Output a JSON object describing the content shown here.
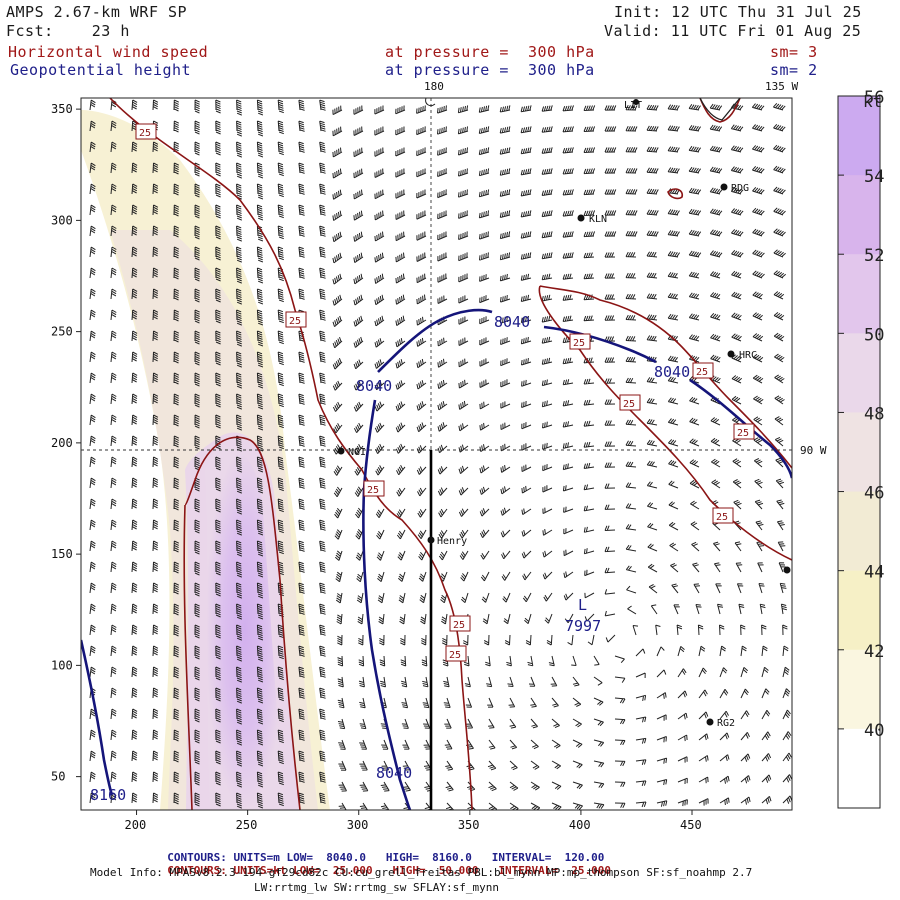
{
  "header": {
    "model": "AMPS 2.67-km WRF SP",
    "init": "Init: 12 UTC Thu 31 Jul 25",
    "forecast": "Fcst:    23 h",
    "valid": "Valid: 11 UTC Fri 01 Aug 25",
    "field1": {
      "name": "Horizontal wind speed",
      "level": "at pressure =  300 hPa",
      "smooth": "sm= 3",
      "color": "#a01818"
    },
    "field2": {
      "name": "Geopotential height",
      "level": "at pressure =  300 hPa",
      "smooth": "sm= 2",
      "color": "#20208a"
    }
  },
  "map": {
    "meridian_labels": [
      "180",
      "135 W",
      "90 W"
    ],
    "stations": [
      "LIT",
      "RDG",
      "KLN",
      "HRC",
      "NGI",
      "Henry",
      "RG2"
    ],
    "low": {
      "label": "L",
      "value": "7997"
    },
    "height_contour_labels": [
      "8040",
      "8040",
      "8040",
      "8040",
      "8160"
    ],
    "speed_contour_label": "25",
    "axes": {
      "x_ticks": [
        "200",
        "250",
        "300",
        "350",
        "400",
        "450"
      ],
      "y_ticks": [
        "50",
        "100",
        "150",
        "200",
        "250",
        "300",
        "350"
      ],
      "xlim": [
        175,
        495
      ],
      "ylim": [
        35,
        355
      ]
    }
  },
  "colorbar": {
    "unit": "kt",
    "ticks": [
      "40",
      "42",
      "44",
      "46",
      "48",
      "50",
      "52",
      "54",
      "56"
    ],
    "colors": [
      "#ffffff",
      "#faf6e0",
      "#f6f0c6",
      "#f2ebd4",
      "#efe3e3",
      "#ead8ea",
      "#e2c6ec",
      "#d8b4ec",
      "#ccaaf0"
    ]
  },
  "footer": {
    "row1": {
      "label": "CONTOURS:",
      "units": "UNITS=m",
      "low": "LOW=  8040.0",
      "high": "HIGH=  8160.0",
      "interval": "INTERVAL=  120.00",
      "color": "#20208a"
    },
    "row2": {
      "label": "CONTOURS:",
      "units": "UNITS=kt",
      "low": "LOW=  25.000",
      "high": "HIGH=  50.000",
      "interval": "INTERVAL=  25.000",
      "color": "#a01818"
    },
    "model_info": "Model Info: MPASv8.2.3-194-gf29cd82c CU:cu_grell_freitas PBL:bl_mynn MP:mp_thompson SF:sf_noahmp 2.7",
    "model_info2": "LW:rrtmg_lw SW:rrtmg_sw SFLAY:sf_mynn"
  }
}
